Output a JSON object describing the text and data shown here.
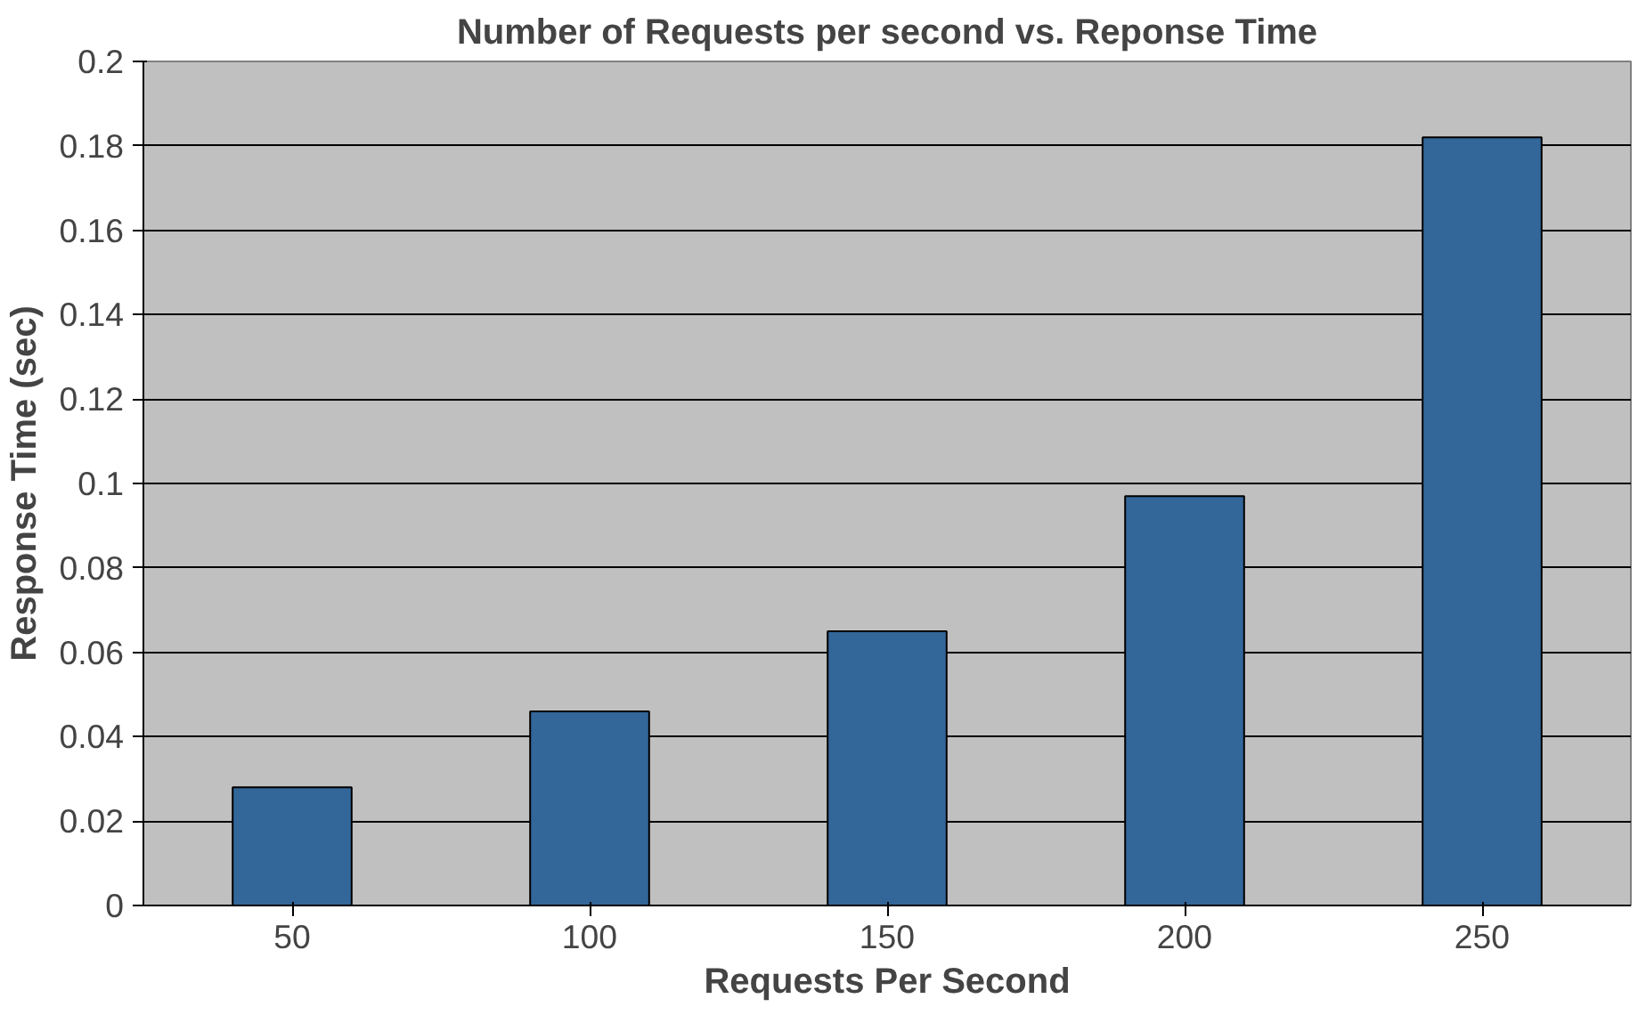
{
  "chart_data": {
    "type": "bar",
    "title": "Number of Requests per second vs. Reponse Time",
    "xlabel": "Requests Per Second",
    "ylabel": "Response Time (sec)",
    "categories": [
      "50",
      "100",
      "150",
      "200",
      "250"
    ],
    "values": [
      0.028,
      0.046,
      0.065,
      0.097,
      0.182
    ],
    "color": "#336699",
    "ylim": [
      0,
      0.2
    ],
    "yticks": [
      0,
      0.02,
      0.04,
      0.06,
      0.08,
      0.1,
      0.12,
      0.14,
      0.16,
      0.18,
      0.2
    ],
    "grid": "y"
  }
}
